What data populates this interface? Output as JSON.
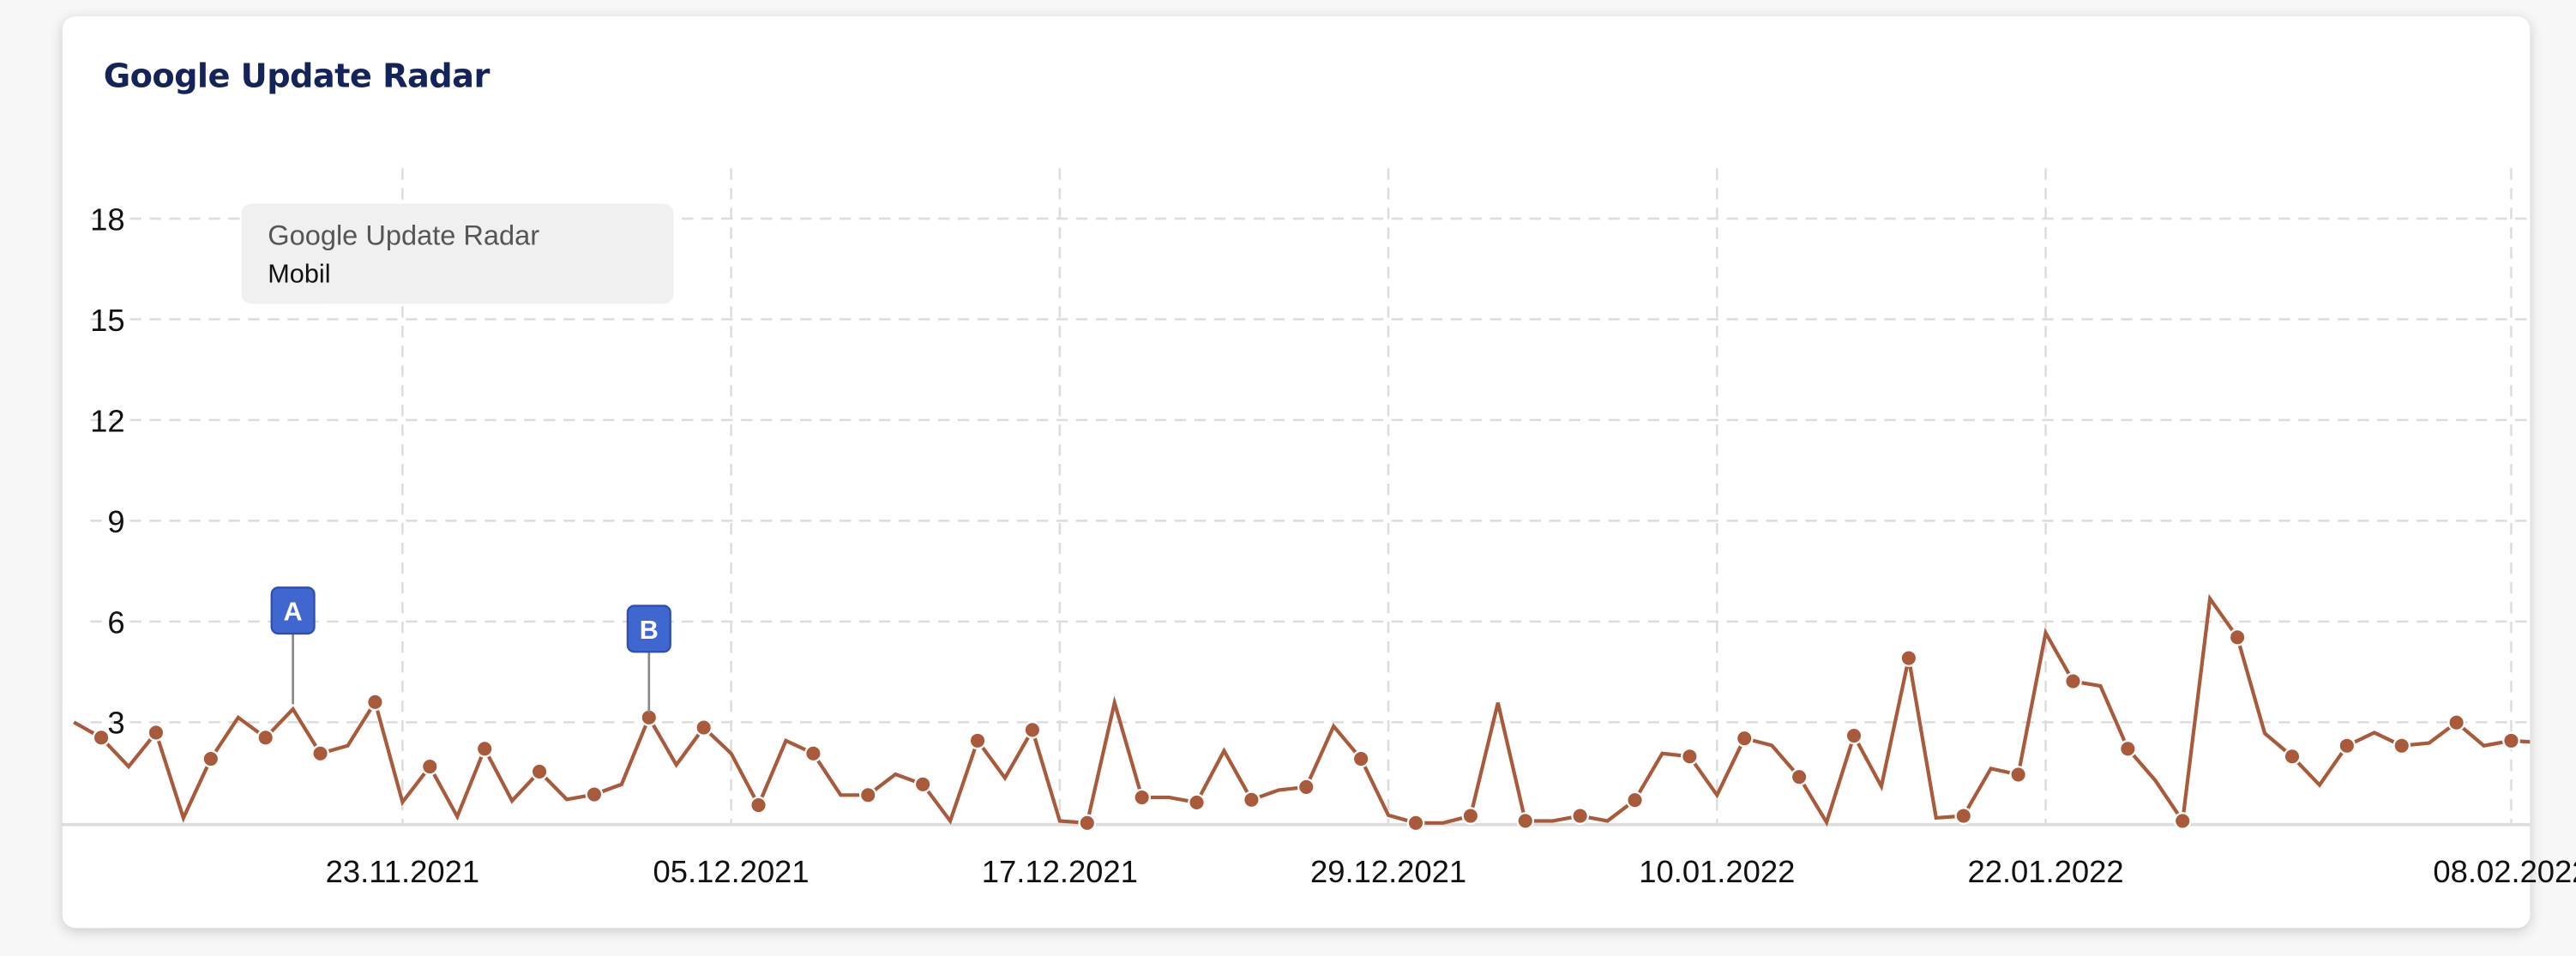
{
  "card": {
    "title": "Google Update Radar"
  },
  "legend": {
    "title": "Google Update Radar",
    "series": "Mobil"
  },
  "chart_data": {
    "type": "line",
    "title": "Google Update Radar",
    "series_name": "Mobil",
    "color": "#a85a3a",
    "x_start": "2021-11-11",
    "x_range": [
      "2021-11-10",
      "2022-02-09"
    ],
    "ylim": [
      0,
      19.5
    ],
    "y_ticks": [
      3,
      6,
      9,
      12,
      15,
      18
    ],
    "x_ticks": [
      {
        "date": "2021-11-23",
        "label": "23.11.2021"
      },
      {
        "date": "2021-12-05",
        "label": "05.12.2021"
      },
      {
        "date": "2021-12-17",
        "label": "17.12.2021"
      },
      {
        "date": "2021-12-29",
        "label": "29.12.2021"
      },
      {
        "date": "2022-01-10",
        "label": "10.01.2022"
      },
      {
        "date": "2022-01-22",
        "label": "22.01.2022"
      },
      {
        "date": "2022-02-08",
        "label": "08.02.2022"
      }
    ],
    "grid": true,
    "legend_position": "top-left",
    "values": [
      3.0,
      2.54,
      1.68,
      2.69,
      0.15,
      1.91,
      3.14,
      2.54,
      3.39,
      2.07,
      2.3,
      3.6,
      0.62,
      1.68,
      0.19,
      2.21,
      0.66,
      1.53,
      0.7,
      0.85,
      1.15,
      3.14,
      1.73,
      2.84,
      2.07,
      0.53,
      2.45,
      2.07,
      0.83,
      0.83,
      1.45,
      1.15,
      0.06,
      2.45,
      1.34,
      2.77,
      0.06,
      0.0,
      3.58,
      0.76,
      0.76,
      0.61,
      2.15,
      0.69,
      0.98,
      1.07,
      2.88,
      1.91,
      0.23,
      0.0,
      0.0,
      0.21,
      3.58,
      0.06,
      0.06,
      0.21,
      0.06,
      0.68,
      2.07,
      1.98,
      0.83,
      2.52,
      2.31,
      1.37,
      0.02,
      2.6,
      1.09,
      4.91,
      0.15,
      0.21,
      1.62,
      1.44,
      5.66,
      4.22,
      4.08,
      2.21,
      1.27,
      0.06,
      6.68,
      5.53,
      2.67,
      1.98,
      1.13,
      2.3,
      2.69,
      2.3,
      2.38,
      2.99,
      2.3,
      2.45,
      2.4
    ],
    "annotations": [
      {
        "date": "2021-11-19",
        "label": "A",
        "color": "#4066d0"
      },
      {
        "date": "2021-12-02",
        "label": "B",
        "color": "#4066d0"
      }
    ]
  }
}
